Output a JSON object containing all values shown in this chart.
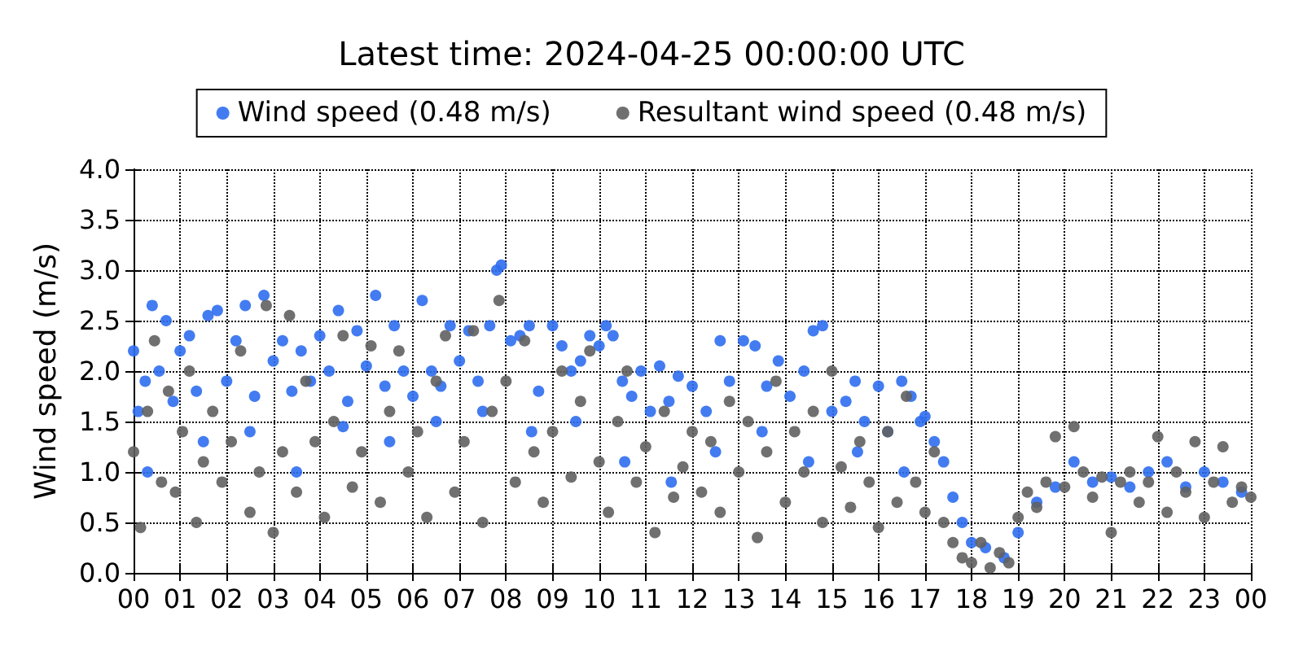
{
  "chart_data": {
    "type": "scatter",
    "title": "Latest time: 2024-04-25 00:00:00 UTC",
    "ylabel": "Wind speed (m/s)",
    "xlim": [
      0,
      24
    ],
    "xticks": [
      {
        "value": 0,
        "label": "00"
      },
      {
        "value": 1,
        "label": "01"
      },
      {
        "value": 2,
        "label": "02"
      },
      {
        "value": 3,
        "label": "03"
      },
      {
        "value": 4,
        "label": "04"
      },
      {
        "value": 5,
        "label": "05"
      },
      {
        "value": 6,
        "label": "06"
      },
      {
        "value": 7,
        "label": "07"
      },
      {
        "value": 8,
        "label": "08"
      },
      {
        "value": 9,
        "label": "09"
      },
      {
        "value": 10,
        "label": "10"
      },
      {
        "value": 11,
        "label": "11"
      },
      {
        "value": 12,
        "label": "12"
      },
      {
        "value": 13,
        "label": "13"
      },
      {
        "value": 14,
        "label": "14"
      },
      {
        "value": 15,
        "label": "15"
      },
      {
        "value": 16,
        "label": "16"
      },
      {
        "value": 17,
        "label": "17"
      },
      {
        "value": 18,
        "label": "18"
      },
      {
        "value": 19,
        "label": "19"
      },
      {
        "value": 20,
        "label": "20"
      },
      {
        "value": 21,
        "label": "21"
      },
      {
        "value": 22,
        "label": "22"
      },
      {
        "value": 23,
        "label": "23"
      },
      {
        "value": 24,
        "label": "00"
      }
    ],
    "ylim": [
      0,
      4
    ],
    "yticks": [
      {
        "value": 0,
        "label": "0.0"
      },
      {
        "value": 0.5,
        "label": "0.5"
      },
      {
        "value": 1,
        "label": "1.0"
      },
      {
        "value": 1.5,
        "label": "1.5"
      },
      {
        "value": 2,
        "label": "2.0"
      },
      {
        "value": 2.5,
        "label": "2.5"
      },
      {
        "value": 3,
        "label": "3.0"
      },
      {
        "value": 3.5,
        "label": "3.5"
      },
      {
        "value": 4,
        "label": "4.0"
      }
    ],
    "grid": true,
    "legend": "top",
    "marker": "circle",
    "series": [
      {
        "name": "Wind speed (0.48 m/s)",
        "color": "#2f6ef0",
        "x": [
          0.0,
          0.1,
          0.25,
          0.3,
          0.4,
          0.55,
          0.7,
          0.85,
          1.0,
          1.2,
          1.35,
          1.5,
          1.6,
          1.8,
          2.0,
          2.2,
          2.4,
          2.5,
          2.6,
          2.8,
          3.0,
          3.2,
          3.4,
          3.5,
          3.6,
          3.8,
          4.0,
          4.2,
          4.4,
          4.5,
          4.6,
          4.8,
          5.0,
          5.2,
          5.4,
          5.5,
          5.6,
          5.8,
          6.0,
          6.2,
          6.4,
          6.5,
          6.6,
          6.8,
          7.0,
          7.2,
          7.4,
          7.5,
          7.65,
          7.8,
          7.9,
          8.1,
          8.3,
          8.5,
          8.55,
          8.7,
          9.0,
          9.2,
          9.4,
          9.5,
          9.6,
          9.8,
          10.0,
          10.15,
          10.3,
          10.5,
          10.55,
          10.7,
          10.9,
          11.1,
          11.3,
          11.5,
          11.55,
          11.7,
          12.0,
          12.3,
          12.5,
          12.6,
          12.8,
          13.1,
          13.35,
          13.5,
          13.6,
          13.85,
          14.1,
          14.4,
          14.5,
          14.6,
          14.8,
          15.0,
          15.3,
          15.5,
          15.55,
          15.7,
          16.0,
          16.2,
          16.5,
          16.55,
          16.7,
          16.9,
          17.0,
          17.2,
          17.4,
          17.6,
          17.8,
          18.0,
          18.3,
          18.7,
          19.0,
          19.4,
          19.8,
          20.2,
          20.6,
          21.0,
          21.4,
          21.8,
          22.2,
          22.6,
          23.0,
          23.4,
          23.8
        ],
        "values": [
          2.2,
          1.6,
          1.9,
          1.0,
          2.65,
          2.0,
          2.5,
          1.7,
          2.2,
          2.35,
          1.8,
          1.3,
          2.55,
          2.6,
          1.9,
          2.3,
          2.65,
          1.4,
          1.75,
          2.75,
          2.1,
          2.3,
          1.8,
          1.0,
          2.2,
          1.9,
          2.35,
          2.0,
          2.6,
          1.45,
          1.7,
          2.4,
          2.05,
          2.75,
          1.85,
          1.3,
          2.45,
          2.0,
          1.75,
          2.7,
          2.0,
          1.5,
          1.85,
          2.45,
          2.1,
          2.4,
          1.9,
          1.6,
          2.45,
          3.0,
          3.05,
          2.3,
          2.35,
          2.45,
          1.4,
          1.8,
          2.45,
          2.25,
          2.0,
          1.5,
          2.1,
          2.35,
          2.25,
          2.45,
          2.35,
          1.9,
          1.1,
          1.75,
          2.0,
          1.6,
          2.05,
          1.7,
          0.9,
          1.95,
          1.85,
          1.6,
          1.2,
          2.3,
          1.9,
          2.3,
          2.25,
          1.4,
          1.85,
          2.1,
          1.75,
          2.0,
          1.1,
          2.4,
          2.45,
          1.6,
          1.7,
          1.9,
          1.2,
          1.5,
          1.85,
          1.4,
          1.9,
          1.0,
          1.75,
          1.5,
          1.55,
          1.3,
          1.1,
          0.75,
          0.5,
          0.3,
          0.25,
          0.15,
          0.4,
          0.7,
          0.85,
          1.1,
          0.9,
          0.95,
          0.85,
          1.0,
          1.1,
          0.85,
          1.0,
          0.9,
          0.8
        ]
      },
      {
        "name": "Resultant wind speed (0.48 m/s)",
        "color": "#606060",
        "x": [
          0.0,
          0.15,
          0.3,
          0.45,
          0.6,
          0.75,
          0.9,
          1.05,
          1.2,
          1.35,
          1.5,
          1.7,
          1.9,
          2.1,
          2.3,
          2.5,
          2.7,
          2.85,
          3.0,
          3.2,
          3.35,
          3.5,
          3.7,
          3.9,
          4.1,
          4.3,
          4.5,
          4.7,
          4.9,
          5.1,
          5.3,
          5.5,
          5.7,
          5.9,
          6.1,
          6.3,
          6.5,
          6.7,
          6.9,
          7.1,
          7.3,
          7.5,
          7.7,
          7.85,
          8.0,
          8.2,
          8.4,
          8.6,
          8.8,
          9.0,
          9.2,
          9.4,
          9.6,
          9.8,
          10.0,
          10.2,
          10.4,
          10.6,
          10.8,
          11.0,
          11.2,
          11.4,
          11.6,
          11.8,
          12.0,
          12.2,
          12.4,
          12.6,
          12.8,
          13.0,
          13.2,
          13.4,
          13.6,
          13.8,
          14.0,
          14.2,
          14.4,
          14.6,
          14.8,
          15.0,
          15.2,
          15.4,
          15.6,
          15.8,
          16.0,
          16.2,
          16.4,
          16.6,
          16.8,
          17.0,
          17.2,
          17.4,
          17.6,
          17.8,
          18.0,
          18.2,
          18.4,
          18.6,
          18.8,
          19.0,
          19.2,
          19.4,
          19.6,
          19.8,
          20.0,
          20.2,
          20.4,
          20.6,
          20.8,
          21.0,
          21.2,
          21.4,
          21.6,
          21.8,
          22.0,
          22.2,
          22.4,
          22.6,
          22.8,
          23.0,
          23.2,
          23.4,
          23.6,
          23.8,
          24.0
        ],
        "values": [
          1.2,
          0.45,
          1.6,
          2.3,
          0.9,
          1.8,
          0.8,
          1.4,
          2.0,
          0.5,
          1.1,
          1.6,
          0.9,
          1.3,
          2.2,
          0.6,
          1.0,
          2.65,
          0.4,
          1.2,
          2.55,
          0.8,
          1.9,
          1.3,
          0.55,
          1.5,
          2.35,
          0.85,
          1.2,
          2.25,
          0.7,
          1.6,
          2.2,
          1.0,
          1.4,
          0.55,
          1.9,
          2.35,
          0.8,
          1.3,
          2.4,
          0.5,
          1.6,
          2.7,
          1.9,
          0.9,
          2.3,
          1.2,
          0.7,
          1.4,
          2.0,
          0.95,
          1.7,
          2.2,
          1.1,
          0.6,
          1.5,
          2.0,
          0.9,
          1.25,
          0.4,
          1.6,
          0.75,
          1.05,
          1.4,
          0.8,
          1.3,
          0.6,
          1.7,
          1.0,
          1.5,
          0.35,
          1.2,
          1.9,
          0.7,
          1.4,
          1.0,
          1.6,
          0.5,
          2.0,
          1.05,
          0.65,
          1.3,
          0.9,
          0.45,
          1.4,
          0.7,
          1.75,
          0.9,
          0.6,
          1.2,
          0.5,
          0.3,
          0.15,
          0.1,
          0.3,
          0.05,
          0.2,
          0.1,
          0.55,
          0.8,
          0.65,
          0.9,
          1.35,
          0.85,
          1.45,
          1.0,
          0.75,
          0.95,
          0.4,
          0.9,
          1.0,
          0.7,
          0.9,
          1.35,
          0.6,
          1.0,
          0.8,
          1.3,
          0.55,
          0.9,
          1.25,
          0.7,
          0.85,
          0.75
        ]
      }
    ]
  }
}
